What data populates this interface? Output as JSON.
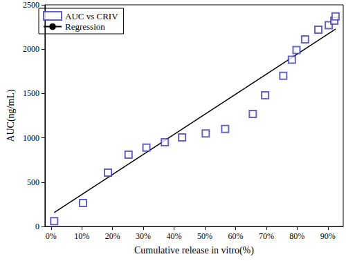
{
  "chart_data": {
    "type": "scatter",
    "xlabel": "Cumulative release in vitro(%)",
    "ylabel": "AUC(ng/mL)",
    "xlim": [
      -2,
      95
    ],
    "xticks": [
      {
        "value": 0,
        "label": "0%"
      },
      {
        "value": 10,
        "label": "10%"
      },
      {
        "value": 20,
        "label": "20%"
      },
      {
        "value": 30,
        "label": "30%"
      },
      {
        "value": 40,
        "label": "40%"
      },
      {
        "value": 50,
        "label": "50%"
      },
      {
        "value": 60,
        "label": "60%"
      },
      {
        "value": 70,
        "label": "70%"
      },
      {
        "value": 80,
        "label": "80%"
      },
      {
        "value": 90,
        "label": "90%"
      }
    ],
    "ylim": [
      0,
      2500
    ],
    "yticks": [
      0,
      500,
      1000,
      1500,
      2000,
      2500
    ],
    "grid": false,
    "legend": "upper left",
    "series": [
      {
        "name": "AUC vs CRIV",
        "type": "scatter",
        "marker": "square",
        "color": "#3c3cb4",
        "x": [
          1,
          10.4,
          18.5,
          25.2,
          31,
          37,
          42.6,
          50.3,
          56.6,
          65.6,
          69.6,
          75.5,
          78.3,
          79.8,
          82.6,
          86.9,
          90.3,
          92.1,
          92.5
        ],
        "values": [
          60,
          265,
          607,
          810,
          890,
          950,
          1005,
          1050,
          1100,
          1270,
          1480,
          1700,
          1880,
          1990,
          2110,
          2220,
          2270,
          2320,
          2370
        ]
      },
      {
        "name": "Regression",
        "type": "line",
        "line_style": "solid",
        "color": "#000000",
        "x": [
          1,
          92.5
        ],
        "values": [
          156,
          2227
        ]
      }
    ]
  }
}
